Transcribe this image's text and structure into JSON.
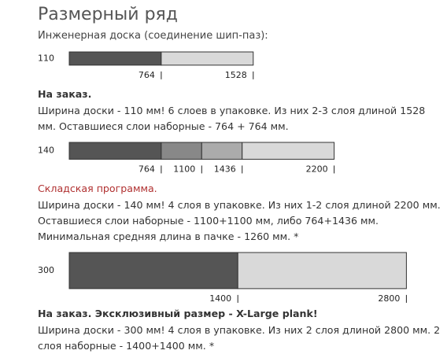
{
  "header": {
    "title": "Размерный ряд",
    "subtitle": "Инженерная доска (соединение шип-паз):"
  },
  "rows": [
    {
      "width": 110,
      "label_color": "#333333",
      "segments": [
        {
          "end": 764,
          "color": "#555555"
        },
        {
          "end": 1528,
          "color": "#d9d9d9"
        }
      ],
      "heading": "На заказ.",
      "heading_color": "#333333",
      "heading_bold": true,
      "text": "Ширина доски - 110 мм! 6 слоев в упаковке. Из них 2-3 слоя длиной 1528 мм. Оставшиеся слои наборные - 764 + 764 мм."
    },
    {
      "width": 140,
      "label_color": "#a02020",
      "segments": [
        {
          "end": 764,
          "color": "#555555"
        },
        {
          "end": 1100,
          "color": "#888888"
        },
        {
          "end": 1436,
          "color": "#ababab"
        },
        {
          "end": 2200,
          "color": "#d9d9d9"
        }
      ],
      "heading": "Складская программа.",
      "heading_color": "#b03030",
      "heading_bold": false,
      "text": "Ширина доски - 140 мм! 4 слоя в упаковке. Из них 1-2 слоя длиной 2200 мм. Оставшиеся слои наборные - 1100+1100 мм, либо 764+1436 мм. Минимальная средняя длина в пачке - 1260 мм. *"
    },
    {
      "width": 300,
      "label_color": "#333333",
      "segments": [
        {
          "end": 1400,
          "color": "#555555"
        },
        {
          "end": 2800,
          "color": "#d9d9d9"
        }
      ],
      "heading": "На заказ. Эксклюзивный размер - X-Large plank!",
      "heading_color": "#333333",
      "heading_bold": true,
      "text": "Ширина доски - 300 мм! 4 слоя в упаковке. Из них 2 слоя длиной 2800 мм. 2 слоя наборные - 1400+1400 мм. *"
    }
  ]
}
